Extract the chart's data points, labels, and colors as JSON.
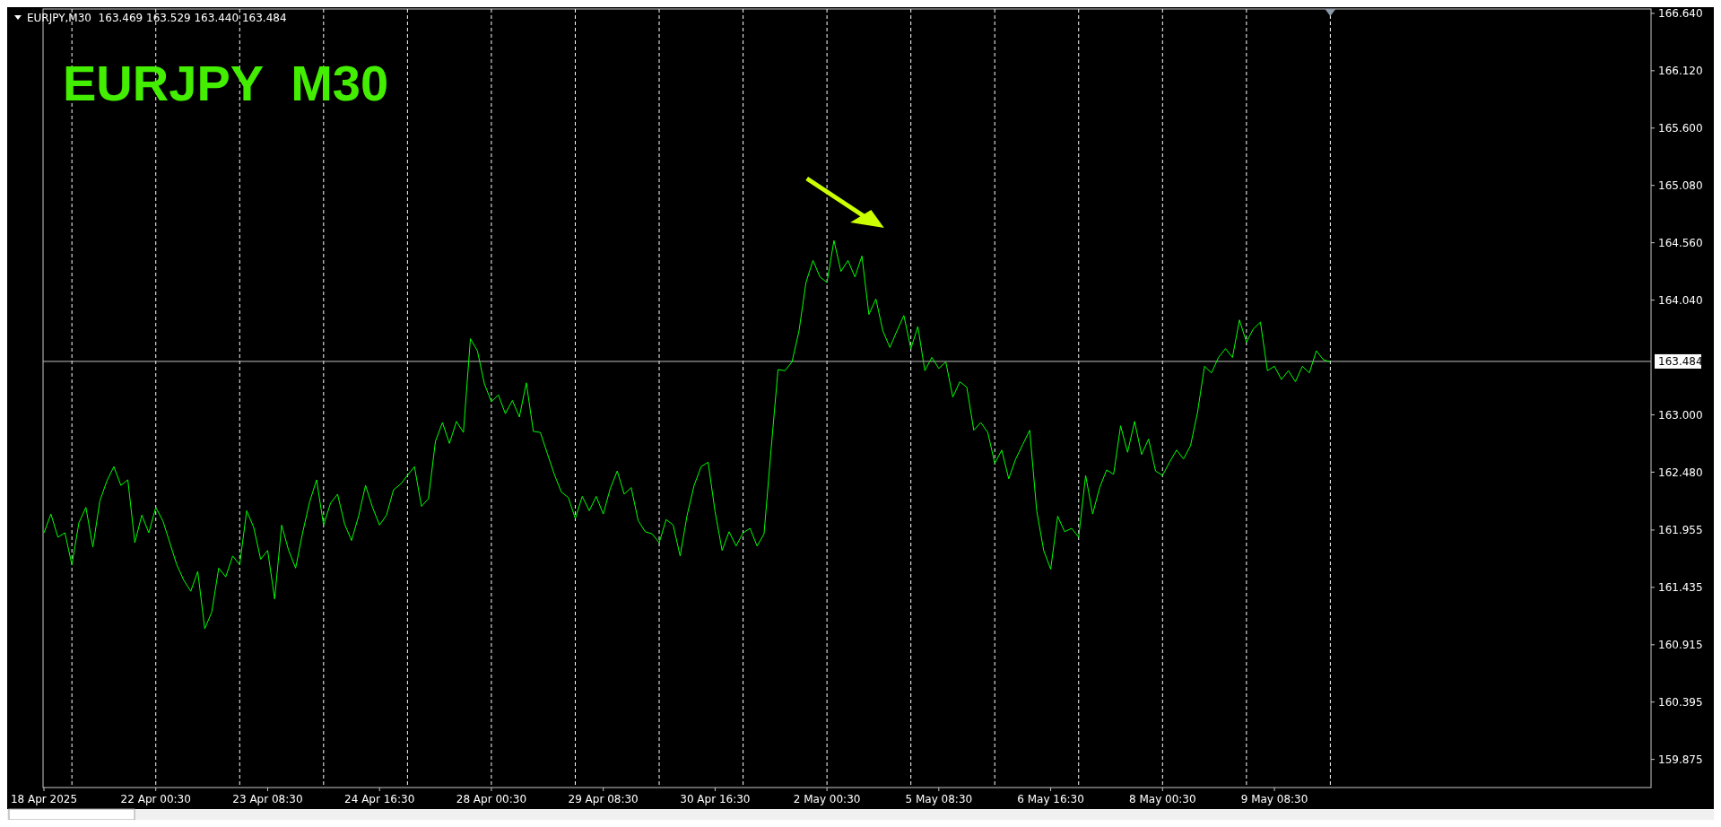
{
  "chart_data": {
    "type": "line",
    "title": "EURJPY  M30",
    "annotations": [
      "EURJPY,M30  163.469 163.529 163.440 163.484"
    ],
    "categories": [
      "18 Apr 2025",
      null,
      null,
      null,
      null,
      null,
      null,
      null,
      null,
      null,
      null,
      null,
      null,
      null,
      null,
      null,
      "22 Apr 00:30",
      null,
      null,
      null,
      null,
      null,
      null,
      null,
      null,
      null,
      null,
      null,
      null,
      null,
      null,
      null,
      "23 Apr 08:30",
      null,
      null,
      null,
      null,
      null,
      null,
      null,
      null,
      null,
      null,
      null,
      null,
      null,
      null,
      null,
      "24 Apr 16:30",
      null,
      null,
      null,
      null,
      null,
      null,
      null,
      null,
      null,
      null,
      null,
      null,
      null,
      null,
      null,
      "28 Apr 00:30",
      null,
      null,
      null,
      null,
      null,
      null,
      null,
      null,
      null,
      null,
      null,
      null,
      null,
      null,
      null,
      "29 Apr 08:30",
      null,
      null,
      null,
      null,
      null,
      null,
      null,
      null,
      null,
      null,
      null,
      null,
      null,
      null,
      null,
      "30 Apr 16:30",
      null,
      null,
      null,
      null,
      null,
      null,
      null,
      null,
      null,
      null,
      null,
      null,
      null,
      null,
      null,
      "2 May 00:30",
      null,
      null,
      null,
      null,
      null,
      null,
      null,
      null,
      null,
      null,
      null,
      null,
      null,
      null,
      null,
      "5 May 08:30",
      null,
      null,
      null,
      null,
      null,
      null,
      null,
      null,
      null,
      null,
      null,
      null,
      null,
      null,
      null,
      "6 May 16:30",
      null,
      null,
      null,
      null,
      null,
      null,
      null,
      null,
      null,
      null,
      null,
      null,
      null,
      null,
      null,
      "8 May 00:30",
      null,
      null,
      null,
      null,
      null,
      null,
      null,
      null,
      null,
      null,
      null,
      null,
      null,
      null,
      null,
      "9 May 08:30",
      null,
      null,
      null,
      null,
      null,
      null,
      null,
      null
    ],
    "series": [
      {
        "color": "#00ff00",
        "values": [
          161.93,
          162.1,
          161.89,
          161.93,
          161.64,
          162.02,
          162.16,
          161.8,
          162.22,
          162.4,
          162.53,
          162.36,
          162.41,
          161.84,
          162.09,
          161.93,
          162.16,
          162.04,
          161.84,
          161.64,
          161.5,
          161.4,
          161.58,
          161.06,
          161.21,
          161.61,
          161.53,
          161.72,
          161.64,
          162.13,
          161.98,
          161.69,
          161.77,
          161.33,
          162.0,
          161.77,
          161.61,
          161.93,
          162.21,
          162.41,
          162.0,
          162.2,
          162.28,
          162.01,
          161.86,
          162.08,
          162.36,
          162.16,
          162.0,
          162.09,
          162.32,
          162.37,
          162.45,
          162.53,
          162.17,
          162.24,
          162.76,
          162.93,
          162.74,
          162.94,
          162.84,
          163.69,
          163.58,
          163.28,
          163.12,
          163.18,
          163.01,
          163.13,
          162.98,
          163.29,
          162.85,
          162.84,
          162.65,
          162.46,
          162.3,
          162.25,
          162.06,
          162.26,
          162.13,
          162.26,
          162.1,
          162.33,
          162.49,
          162.28,
          162.34,
          162.04,
          161.94,
          161.92,
          161.84,
          162.05,
          162.0,
          161.72,
          162.09,
          162.36,
          162.53,
          162.57,
          162.12,
          161.77,
          161.94,
          161.81,
          161.93,
          161.97,
          161.81,
          161.92,
          162.68,
          163.41,
          163.4,
          163.48,
          163.76,
          164.2,
          164.4,
          164.25,
          164.2,
          164.58,
          164.3,
          164.4,
          164.25,
          164.44,
          163.91,
          164.05,
          163.76,
          163.61,
          163.76,
          163.9,
          163.6,
          163.8,
          163.4,
          163.52,
          163.42,
          163.48,
          163.16,
          163.3,
          163.25,
          162.86,
          162.93,
          162.84,
          162.56,
          162.68,
          162.42,
          162.6,
          162.73,
          162.86,
          162.13,
          161.77,
          161.6,
          162.08,
          161.94,
          161.97,
          161.89,
          162.45,
          162.1,
          162.34,
          162.5,
          162.46,
          162.9,
          162.66,
          162.94,
          162.64,
          162.78,
          162.49,
          162.45,
          162.57,
          162.68,
          162.6,
          162.72,
          163.02,
          163.44,
          163.38,
          163.52,
          163.6,
          163.52,
          163.86,
          163.66,
          163.78,
          163.84,
          163.4,
          163.44,
          163.32,
          163.4,
          163.3,
          163.44,
          163.38,
          163.58,
          163.5,
          163.48
        ]
      }
    ],
    "ylim": [
      159.62,
      166.68
    ],
    "yticks": [
      {
        "value": 159.875,
        "label": "159.875"
      },
      {
        "value": 160.395,
        "label": "160.395"
      },
      {
        "value": 160.915,
        "label": "160.915"
      },
      {
        "value": 161.435,
        "label": "161.435"
      },
      {
        "value": 161.955,
        "label": "161.955"
      },
      {
        "value": 162.48,
        "label": "162.480"
      },
      {
        "value": 163,
        "label": "163.000"
      },
      {
        "value": 164.04,
        "label": "164.040"
      },
      {
        "value": 164.56,
        "label": "164.560"
      },
      {
        "value": 165.08,
        "label": "165.080"
      },
      {
        "value": 165.6,
        "label": "165.600"
      },
      {
        "value": 166.12,
        "label": "166.120"
      },
      {
        "value": 166.64,
        "label": "166.640"
      }
    ],
    "ref_lines": [
      {
        "axis": "y",
        "value": 163.484,
        "label": "163.484",
        "color": "#c0c0c0"
      }
    ]
  }
}
